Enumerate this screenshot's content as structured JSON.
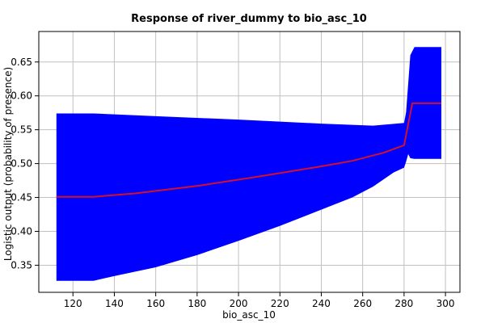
{
  "chart_data": {
    "type": "area",
    "title": "Response of river_dummy to bio_asc_10",
    "xlabel": "bio_asc_10",
    "ylabel": "Logistic output (probability of presence)",
    "xlim": [
      103.5,
      307
    ],
    "ylim": [
      0.31,
      0.695
    ],
    "grid": true,
    "xticks": [
      120,
      140,
      160,
      180,
      200,
      220,
      240,
      260,
      280,
      300
    ],
    "yticks": [
      0.35,
      0.4,
      0.45,
      0.5,
      0.55,
      0.6,
      0.65
    ],
    "colors": {
      "band": "#0000ff",
      "mean": "#d4102a",
      "grid": "#c0c0c0",
      "frame": "#000000"
    },
    "band_upper": [
      [
        112,
        0.574
      ],
      [
        130,
        0.574
      ],
      [
        160,
        0.57
      ],
      [
        200,
        0.565
      ],
      [
        240,
        0.559
      ],
      [
        265,
        0.556
      ],
      [
        280,
        0.56
      ],
      [
        281,
        0.576
      ],
      [
        283,
        0.66
      ],
      [
        285,
        0.672
      ],
      [
        298,
        0.672
      ]
    ],
    "band_lower": [
      [
        298,
        0.507
      ],
      [
        285,
        0.507
      ],
      [
        283,
        0.508
      ],
      [
        282,
        0.514
      ],
      [
        281,
        0.503
      ],
      [
        280,
        0.494
      ],
      [
        275,
        0.487
      ],
      [
        265,
        0.466
      ],
      [
        255,
        0.45
      ],
      [
        240,
        0.432
      ],
      [
        220,
        0.408
      ],
      [
        200,
        0.386
      ],
      [
        180,
        0.365
      ],
      [
        160,
        0.347
      ],
      [
        140,
        0.334
      ],
      [
        130,
        0.327
      ],
      [
        112,
        0.327
      ]
    ],
    "mean": [
      [
        112,
        0.451
      ],
      [
        130,
        0.451
      ],
      [
        150,
        0.456
      ],
      [
        180,
        0.467
      ],
      [
        210,
        0.481
      ],
      [
        240,
        0.496
      ],
      [
        255,
        0.504
      ],
      [
        270,
        0.516
      ],
      [
        280,
        0.527
      ],
      [
        284,
        0.589
      ],
      [
        298,
        0.589
      ]
    ]
  }
}
